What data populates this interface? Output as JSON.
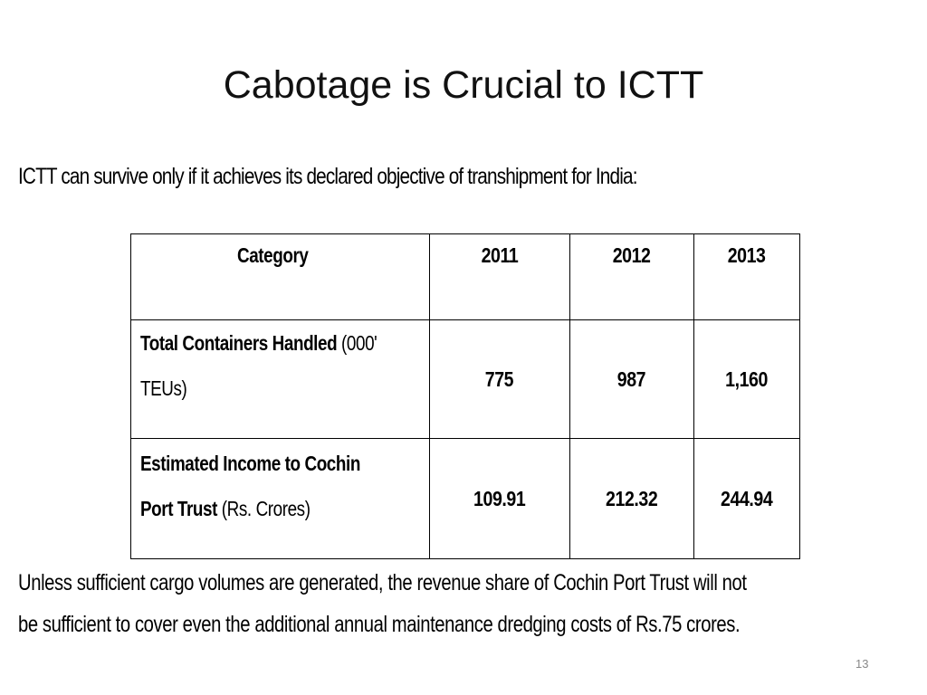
{
  "slide": {
    "title": "Cabotage is Crucial to ICTT",
    "intro": "ICTT can survive only if it achieves its declared objective of transhipment for India:",
    "table": {
      "headers": [
        "Category",
        "2011",
        "2012",
        "2013"
      ],
      "rows": [
        {
          "label_bold": "Total Containers Handled",
          "label_normal_1": " (000'",
          "label_normal_2": "TEUs)",
          "values": [
            "775",
            "987",
            "1,160"
          ]
        },
        {
          "label_bold_1": "Estimated Income to Cochin",
          "label_bold_2": "Port Trust",
          "label_normal": " (Rs. Crores)",
          "values": [
            "109.91",
            "212.32",
            "244.94"
          ]
        }
      ]
    },
    "conclusion_line1": "Unless sufficient cargo volumes are generated, the revenue share of Cochin Port Trust will not",
    "conclusion_line2": "be sufficient to cover even the additional annual maintenance dredging costs of Rs.75 crores.",
    "page_number": "13"
  }
}
